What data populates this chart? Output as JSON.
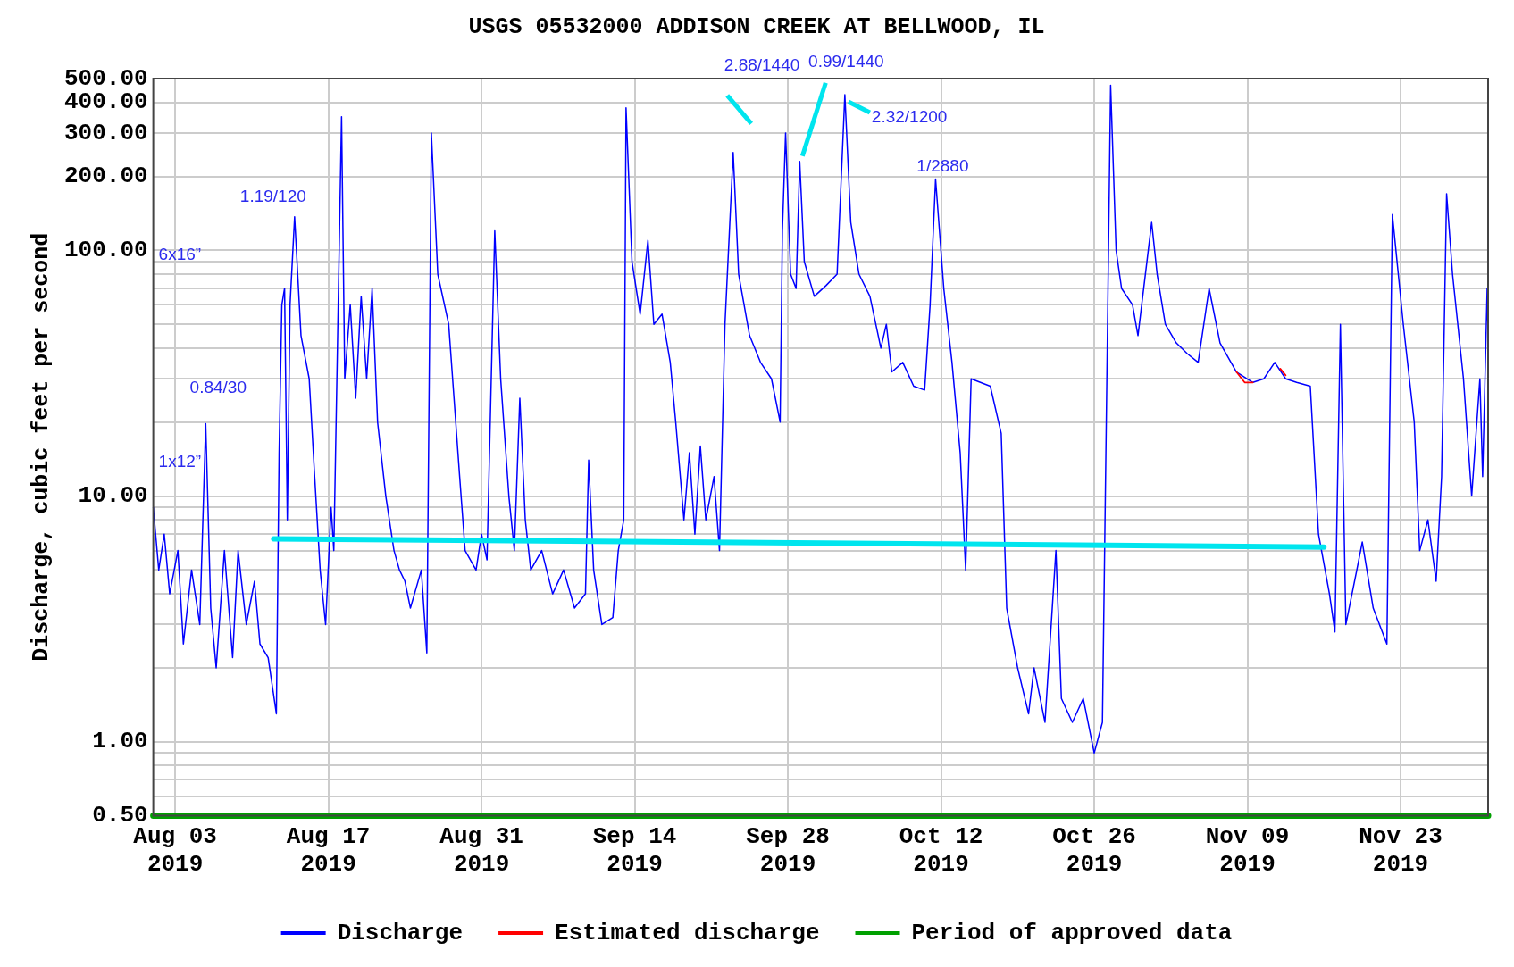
{
  "chart_data": {
    "type": "line",
    "title": "USGS 05532000 ADDISON CREEK AT BELLWOOD, IL",
    "ylabel": "Discharge, cubic feet per second",
    "xlim": [
      "2019-08-01",
      "2019-12-01"
    ],
    "xticks": [
      {
        "value": "2019-08-03",
        "label": "Aug 03 2019"
      },
      {
        "value": "2019-08-17",
        "label": "Aug 17 2019"
      },
      {
        "value": "2019-08-31",
        "label": "Aug 31 2019"
      },
      {
        "value": "2019-09-14",
        "label": "Sep 14 2019"
      },
      {
        "value": "2019-09-28",
        "label": "Sep 28 2019"
      },
      {
        "value": "2019-10-12",
        "label": "Oct 12 2019"
      },
      {
        "value": "2019-10-26",
        "label": "Oct 26 2019"
      },
      {
        "value": "2019-11-09",
        "label": "Nov 09 2019"
      },
      {
        "value": "2019-11-23",
        "label": "Nov 23 2019"
      }
    ],
    "ylim": [
      0.5,
      500
    ],
    "yticks": [
      {
        "value": 0.5,
        "label": "0.50"
      },
      {
        "value": 0.6,
        "label": null
      },
      {
        "value": 0.7,
        "label": null
      },
      {
        "value": 0.8,
        "label": null
      },
      {
        "value": 0.9,
        "label": null
      },
      {
        "value": 1,
        "label": "1.00"
      },
      {
        "value": 2,
        "label": null
      },
      {
        "value": 3,
        "label": null
      },
      {
        "value": 4,
        "label": null
      },
      {
        "value": 5,
        "label": null
      },
      {
        "value": 6,
        "label": null
      },
      {
        "value": 7,
        "label": null
      },
      {
        "value": 8,
        "label": null
      },
      {
        "value": 9,
        "label": null
      },
      {
        "value": 10,
        "label": "10.00"
      },
      {
        "value": 20,
        "label": null
      },
      {
        "value": 30,
        "label": null
      },
      {
        "value": 40,
        "label": null
      },
      {
        "value": 50,
        "label": null
      },
      {
        "value": 60,
        "label": null
      },
      {
        "value": 70,
        "label": null
      },
      {
        "value": 80,
        "label": null
      },
      {
        "value": 90,
        "label": null
      },
      {
        "value": 100,
        "label": "100.00"
      },
      {
        "value": 200,
        "label": "200.00"
      },
      {
        "value": 300,
        "label": "300.00"
      },
      {
        "value": 400,
        "label": "400.00"
      },
      {
        "value": 500,
        "label": "500.00"
      }
    ],
    "log": true,
    "grid": true,
    "legend": "bottom",
    "annotations": [
      "2.88/1440",
      {
        "text": "0.99/1440",
        "x": "2019-09-29T02:00",
        "y": 230
      },
      {
        "text": "2.32/1200",
        "x": "2019-10-03T05:00",
        "y": 430
      },
      {
        "text": "1/2880",
        "x": "2019-10-11T12:00",
        "y": 195
      },
      {
        "text": "1.19/120",
        "x": "2019-08-13T22:00",
        "y": 137
      },
      "6x16”",
      {
        "text": "0.84/30",
        "x": "2019-08-05T19:00",
        "y": 19.7
      },
      "1x12”"
    ],
    "series": [
      {
        "type": "line",
        "name": "Discharge",
        "color": "#0000ff",
        "x": [
          "2019-08-01",
          "2019-08-01T12:00",
          "2019-08-02",
          "2019-08-02T12:00",
          "2019-08-03T06:00",
          "2019-08-03T18:00",
          "2019-08-04T12:00",
          "2019-08-05T06:00",
          "2019-08-05T19:00",
          "2019-08-06T06:00",
          "2019-08-06T18:00",
          "2019-08-07T12:00",
          "2019-08-08T06:00",
          "2019-08-08T18:00",
          "2019-08-09T12:00",
          "2019-08-10T06:00",
          "2019-08-10T18:00",
          "2019-08-11T12:00",
          "2019-08-12T06:00",
          "2019-08-12T12:00",
          "2019-08-12T18:00",
          "2019-08-13",
          "2019-08-13T06:00",
          "2019-08-13T12:00",
          "2019-08-13T22:00",
          "2019-08-14T12:00",
          "2019-08-15T06:00",
          "2019-08-15T18:00",
          "2019-08-16T06:00",
          "2019-08-16T18:00",
          "2019-08-17T06:00",
          "2019-08-17T12:00",
          "2019-08-18T05:00",
          "2019-08-18T12:00",
          "2019-08-19",
          "2019-08-19T12:00",
          "2019-08-20",
          "2019-08-20T12:00",
          "2019-08-21",
          "2019-08-21T12:00",
          "2019-08-22T06:00",
          "2019-08-23",
          "2019-08-23T12:00",
          "2019-08-24",
          "2019-08-24T12:00",
          "2019-08-25T12:00",
          "2019-08-26",
          "2019-08-26T10:00",
          "2019-08-27",
          "2019-08-28",
          "2019-08-29",
          "2019-08-29T12:00",
          "2019-08-30T12:00",
          "2019-08-31",
          "2019-08-31T12:00",
          "2019-09-01T05:00",
          "2019-09-01T18:00",
          "2019-09-02T12:00",
          "2019-09-03",
          "2019-09-03T12:00",
          "2019-09-04",
          "2019-09-04T12:00",
          "2019-09-05T12:00",
          "2019-09-06T12:00",
          "2019-09-07T12:00",
          "2019-09-08T12:00",
          "2019-09-09T12:00",
          "2019-09-09T19:00",
          "2019-09-10T06:00",
          "2019-09-11",
          "2019-09-12",
          "2019-09-12T12:00",
          "2019-09-13",
          "2019-09-13T05:00",
          "2019-09-13T18:00",
          "2019-09-14T12:00",
          "2019-09-15T05:00",
          "2019-09-15T18:00",
          "2019-09-16T12:00",
          "2019-09-17T06:00",
          "2019-09-17T18:00",
          "2019-09-18T12:00",
          "2019-09-19",
          "2019-09-19T12:00",
          "2019-09-20",
          "2019-09-20T12:00",
          "2019-09-21T06:00",
          "2019-09-21T18:00",
          "2019-09-22T06:00",
          "2019-09-23",
          "2019-09-23T12:00",
          "2019-09-24T12:00",
          "2019-09-25T12:00",
          "2019-09-26T12:00",
          "2019-09-27T07:00",
          "2019-09-27T12:00",
          "2019-09-27T19:00",
          "2019-09-28T06:00",
          "2019-09-28T18:00",
          "2019-09-29T02:00",
          "2019-09-29T12:00",
          "2019-09-30T10:00",
          "2019-10-01T12:00",
          "2019-10-02T12:00",
          "2019-10-03T05:00",
          "2019-10-03T18:00",
          "2019-10-04T12:00",
          "2019-10-05T12:00",
          "2019-10-06T12:00",
          "2019-10-07",
          "2019-10-07T12:00",
          "2019-10-08T12:00",
          "2019-10-09T12:00",
          "2019-10-10T12:00",
          "2019-10-11",
          "2019-10-11T12:00",
          "2019-10-12T06:00",
          "2019-10-13",
          "2019-10-13T18:00",
          "2019-10-14T06:00",
          "2019-10-14T18:00",
          "2019-10-16T12:00",
          "2019-10-17T12:00",
          "2019-10-18",
          "2019-10-19",
          "2019-10-20",
          "2019-10-20T12:00",
          "2019-10-21T12:00",
          "2019-10-22T12:00",
          "2019-10-23",
          "2019-10-24",
          "2019-10-25",
          "2019-10-26",
          "2019-10-26T18:00",
          "2019-10-27T12:00",
          "2019-10-28",
          "2019-10-28T12:00",
          "2019-10-29T12:00",
          "2019-10-30",
          "2019-10-31T06:00",
          "2019-10-31T18:00",
          "2019-11-01T12:00",
          "2019-11-02T12:00",
          "2019-11-03T12:00",
          "2019-11-04T12:00",
          "2019-11-05T12:00",
          "2019-11-06T12:00",
          "2019-11-07T12:00",
          "2019-11-08",
          "2019-11-09T12:00",
          "2019-11-10T12:00",
          "2019-11-11T12:00",
          "2019-11-12T12:00",
          "2019-11-13T12:00",
          "2019-11-14T18:00",
          "2019-11-15T12:00",
          "2019-11-16T12:00",
          "2019-11-17",
          "2019-11-17T12:00",
          "2019-11-18",
          "2019-11-19",
          "2019-11-19T12:00",
          "2019-11-20T12:00",
          "2019-11-21T18:00",
          "2019-11-22T06:00",
          "2019-11-23T06:00",
          "2019-11-24T06:00",
          "2019-11-24T18:00",
          "2019-11-25T12:00",
          "2019-11-26T06:00",
          "2019-11-26T18:00",
          "2019-11-27T05:00",
          "2019-11-27T18:00",
          "2019-11-28T18:00",
          "2019-11-29T12:00",
          "2019-11-30T06:00",
          "2019-11-30T12:00",
          "2019-11-30T22:00",
          "2019-12-01"
        ],
        "values": [
          9,
          5,
          7,
          4,
          6,
          2.5,
          5,
          3,
          19.7,
          3.5,
          2,
          6,
          2.2,
          6,
          3,
          4.5,
          2.5,
          2.2,
          1.3,
          15,
          60,
          70,
          8,
          60,
          137,
          45,
          30,
          12,
          5,
          3,
          9,
          6,
          350,
          30,
          60,
          25,
          65,
          30,
          70,
          20,
          10,
          6,
          5,
          4.5,
          3.5,
          5,
          2.3,
          300,
          80,
          50,
          12,
          6,
          5,
          7,
          5.5,
          120,
          30,
          10,
          6,
          25,
          8,
          5,
          6,
          4,
          5,
          3.5,
          4,
          14,
          5,
          3,
          3.2,
          6,
          8,
          380,
          90,
          55,
          110,
          50,
          55,
          35,
          20,
          8,
          15,
          7,
          16,
          8,
          12,
          6,
          50,
          250,
          80,
          45,
          35,
          30,
          20,
          120,
          300,
          80,
          70,
          230,
          90,
          65,
          72,
          80,
          430,
          130,
          80,
          65,
          40,
          50,
          32,
          35,
          28,
          27,
          60,
          195,
          70,
          35,
          15,
          5,
          30,
          28,
          18,
          3.5,
          2,
          1.3,
          2,
          1.2,
          6,
          1.5,
          1.2,
          1.5,
          0.9,
          1.2,
          470,
          100,
          70,
          60,
          45,
          130,
          80,
          50,
          42,
          38,
          35,
          70,
          42,
          35,
          32,
          29,
          30,
          35,
          30,
          29,
          28,
          7,
          4,
          2.8,
          50,
          3,
          5,
          6.5,
          3.5,
          2.5,
          140,
          50,
          20,
          6,
          8,
          4.5,
          12,
          170,
          80,
          30,
          10,
          30,
          12,
          70,
          45
        ]
      },
      {
        "type": "line",
        "name": "Estimated discharge",
        "color": "#ff0000",
        "x": [
          "2019-11-08",
          "2019-11-08T18:00",
          "2019-11-09T12:00",
          "2019-11-10",
          "2019-11-12",
          "2019-11-12T12:00"
        ],
        "values": [
          32,
          29,
          29,
          null,
          33,
          31
        ]
      },
      {
        "type": "line",
        "name": "Period of approved data",
        "color": "#00a000",
        "x": [
          "2019-08-01",
          "2019-12-01"
        ],
        "values": [
          0.5,
          0.5
        ]
      },
      {
        "type": "line",
        "color": "#00e5ee",
        "x": [
          "2019-08-12",
          "2019-11-16"
        ],
        "values": [
          6.7,
          6.2
        ]
      }
    ]
  }
}
